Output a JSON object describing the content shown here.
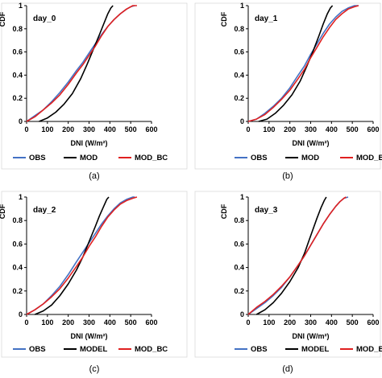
{
  "colors": {
    "obs": "#4472c4",
    "mod": "#000000",
    "mod_bc": "#e02020"
  },
  "chart_data": [
    {
      "type": "line",
      "annotation": "day_0",
      "caption": "(a)",
      "xlabel": "DNI (W/m²)",
      "ylabel": "CDF",
      "xlim": [
        0,
        600
      ],
      "ylim": [
        0,
        1
      ],
      "xticks": [
        "0",
        "100",
        "200",
        "300",
        "400",
        "500",
        "600"
      ],
      "yticks": [
        "0",
        "0.2",
        "0.4",
        "0.6",
        "0.8",
        "1"
      ],
      "legend_position": "bottom",
      "series": [
        {
          "name": "OBS",
          "color": "#4472c4",
          "x": [
            0,
            40,
            80,
            120,
            160,
            200,
            240,
            270,
            300,
            330,
            360,
            390,
            420,
            450,
            480,
            500,
            520
          ],
          "y": [
            0,
            0.05,
            0.1,
            0.17,
            0.25,
            0.34,
            0.44,
            0.51,
            0.59,
            0.67,
            0.75,
            0.82,
            0.88,
            0.93,
            0.97,
            0.99,
            1.0
          ]
        },
        {
          "name": "MOD",
          "color": "#000000",
          "x": [
            60,
            100,
            140,
            180,
            220,
            260,
            290,
            320,
            350,
            370,
            390,
            405,
            415
          ],
          "y": [
            0,
            0.03,
            0.08,
            0.15,
            0.24,
            0.37,
            0.49,
            0.62,
            0.75,
            0.84,
            0.93,
            0.98,
            1.0
          ]
        },
        {
          "name": "MOD_BC",
          "color": "#e02020",
          "x": [
            0,
            40,
            80,
            120,
            160,
            200,
            240,
            270,
            300,
            330,
            360,
            390,
            420,
            450,
            480,
            510,
            530
          ],
          "y": [
            0,
            0.04,
            0.1,
            0.16,
            0.23,
            0.32,
            0.42,
            0.49,
            0.57,
            0.65,
            0.74,
            0.82,
            0.88,
            0.93,
            0.97,
            1.0,
            1.0
          ]
        }
      ]
    },
    {
      "type": "line",
      "annotation": "day_1",
      "caption": "(b)",
      "xlabel": "DNI (W/m²)",
      "ylabel": "CDF",
      "xlim": [
        0,
        600
      ],
      "ylim": [
        0,
        1
      ],
      "xticks": [
        "0",
        "100",
        "200",
        "300",
        "400",
        "500",
        "600"
      ],
      "yticks": [
        "0",
        "0.2",
        "0.4",
        "0.6",
        "0.8",
        "1"
      ],
      "legend_position": "bottom",
      "series": [
        {
          "name": "OBS",
          "color": "#4472c4",
          "x": [
            0,
            40,
            80,
            120,
            160,
            200,
            240,
            270,
            300,
            330,
            360,
            390,
            420,
            450,
            480,
            510,
            530
          ],
          "y": [
            0,
            0.02,
            0.07,
            0.13,
            0.2,
            0.29,
            0.4,
            0.48,
            0.58,
            0.67,
            0.76,
            0.84,
            0.9,
            0.95,
            0.98,
            1.0,
            1.0
          ]
        },
        {
          "name": "MOD",
          "color": "#000000",
          "x": [
            50,
            90,
            130,
            170,
            210,
            250,
            280,
            310,
            340,
            360,
            380,
            395,
            405
          ],
          "y": [
            0,
            0.02,
            0.07,
            0.14,
            0.23,
            0.35,
            0.47,
            0.6,
            0.74,
            0.84,
            0.93,
            0.98,
            1.0
          ]
        },
        {
          "name": "MOD_BC",
          "color": "#e02020",
          "x": [
            0,
            40,
            80,
            120,
            160,
            200,
            240,
            270,
            300,
            330,
            360,
            390,
            420,
            450,
            480,
            510,
            530
          ],
          "y": [
            0,
            0.02,
            0.06,
            0.12,
            0.19,
            0.27,
            0.37,
            0.45,
            0.55,
            0.64,
            0.73,
            0.81,
            0.88,
            0.93,
            0.97,
            0.99,
            1.0
          ]
        }
      ]
    },
    {
      "type": "line",
      "annotation": "day_2",
      "caption": "(c)",
      "xlabel": "DNI (W/m²)",
      "ylabel": "CDF",
      "xlim": [
        0,
        600
      ],
      "ylim": [
        0,
        1
      ],
      "xticks": [
        "0",
        "100",
        "200",
        "300",
        "400",
        "500",
        "600"
      ],
      "yticks": [
        "0",
        "0.2",
        "0.4",
        "0.6",
        "0.8",
        "1"
      ],
      "legend_position": "bottom",
      "series": [
        {
          "name": "OBS",
          "color": "#4472c4",
          "x": [
            0,
            40,
            80,
            120,
            160,
            200,
            240,
            270,
            300,
            330,
            360,
            390,
            420,
            450,
            480,
            510,
            520
          ],
          "y": [
            0,
            0.04,
            0.09,
            0.16,
            0.24,
            0.34,
            0.45,
            0.53,
            0.61,
            0.69,
            0.77,
            0.84,
            0.9,
            0.95,
            0.98,
            1.0,
            1.0
          ]
        },
        {
          "name": "MODEL",
          "color": "#000000",
          "x": [
            40,
            80,
            120,
            160,
            200,
            240,
            270,
            300,
            330,
            350,
            370,
            385,
            395
          ],
          "y": [
            0,
            0.03,
            0.08,
            0.16,
            0.26,
            0.38,
            0.49,
            0.62,
            0.75,
            0.84,
            0.92,
            0.98,
            1.0
          ]
        },
        {
          "name": "MOD_BC",
          "color": "#e02020",
          "x": [
            0,
            40,
            80,
            120,
            160,
            200,
            240,
            270,
            300,
            330,
            360,
            390,
            420,
            450,
            480,
            510,
            530
          ],
          "y": [
            0,
            0.04,
            0.09,
            0.15,
            0.22,
            0.31,
            0.41,
            0.49,
            0.58,
            0.66,
            0.75,
            0.83,
            0.89,
            0.94,
            0.97,
            0.99,
            1.0
          ]
        }
      ]
    },
    {
      "type": "line",
      "annotation": "day_3",
      "caption": "(d)",
      "xlabel": "DNI (W/m²)",
      "ylabel": "CDF",
      "xlim": [
        0,
        600
      ],
      "ylim": [
        0,
        1
      ],
      "xticks": [
        "0",
        "100",
        "200",
        "300",
        "400",
        "500",
        "600"
      ],
      "yticks": [
        "0",
        "0.2",
        "0.4",
        "0.6",
        "0.8",
        "1"
      ],
      "legend_position": "bottom",
      "series": [
        {
          "name": "OBS",
          "color": "#4472c4",
          "x": [
            0,
            40,
            80,
            120,
            160,
            200,
            240,
            270,
            300,
            330,
            360,
            390,
            420,
            440,
            460,
            480
          ],
          "y": [
            0,
            0.05,
            0.1,
            0.16,
            0.23,
            0.32,
            0.42,
            0.5,
            0.59,
            0.68,
            0.77,
            0.85,
            0.92,
            0.96,
            0.99,
            1.0
          ]
        },
        {
          "name": "MODEL",
          "color": "#000000",
          "x": [
            40,
            80,
            120,
            160,
            200,
            240,
            270,
            290,
            310,
            330,
            350,
            365,
            375
          ],
          "y": [
            0,
            0.04,
            0.1,
            0.18,
            0.28,
            0.4,
            0.52,
            0.62,
            0.72,
            0.82,
            0.91,
            0.97,
            1.0
          ]
        },
        {
          "name": "MOD_BC",
          "color": "#e02020",
          "x": [
            0,
            40,
            80,
            120,
            160,
            200,
            240,
            270,
            300,
            330,
            360,
            390,
            420,
            440,
            460,
            470
          ],
          "y": [
            0,
            0.06,
            0.11,
            0.17,
            0.24,
            0.32,
            0.42,
            0.5,
            0.59,
            0.68,
            0.77,
            0.85,
            0.92,
            0.96,
            0.99,
            1.0
          ]
        }
      ]
    }
  ]
}
